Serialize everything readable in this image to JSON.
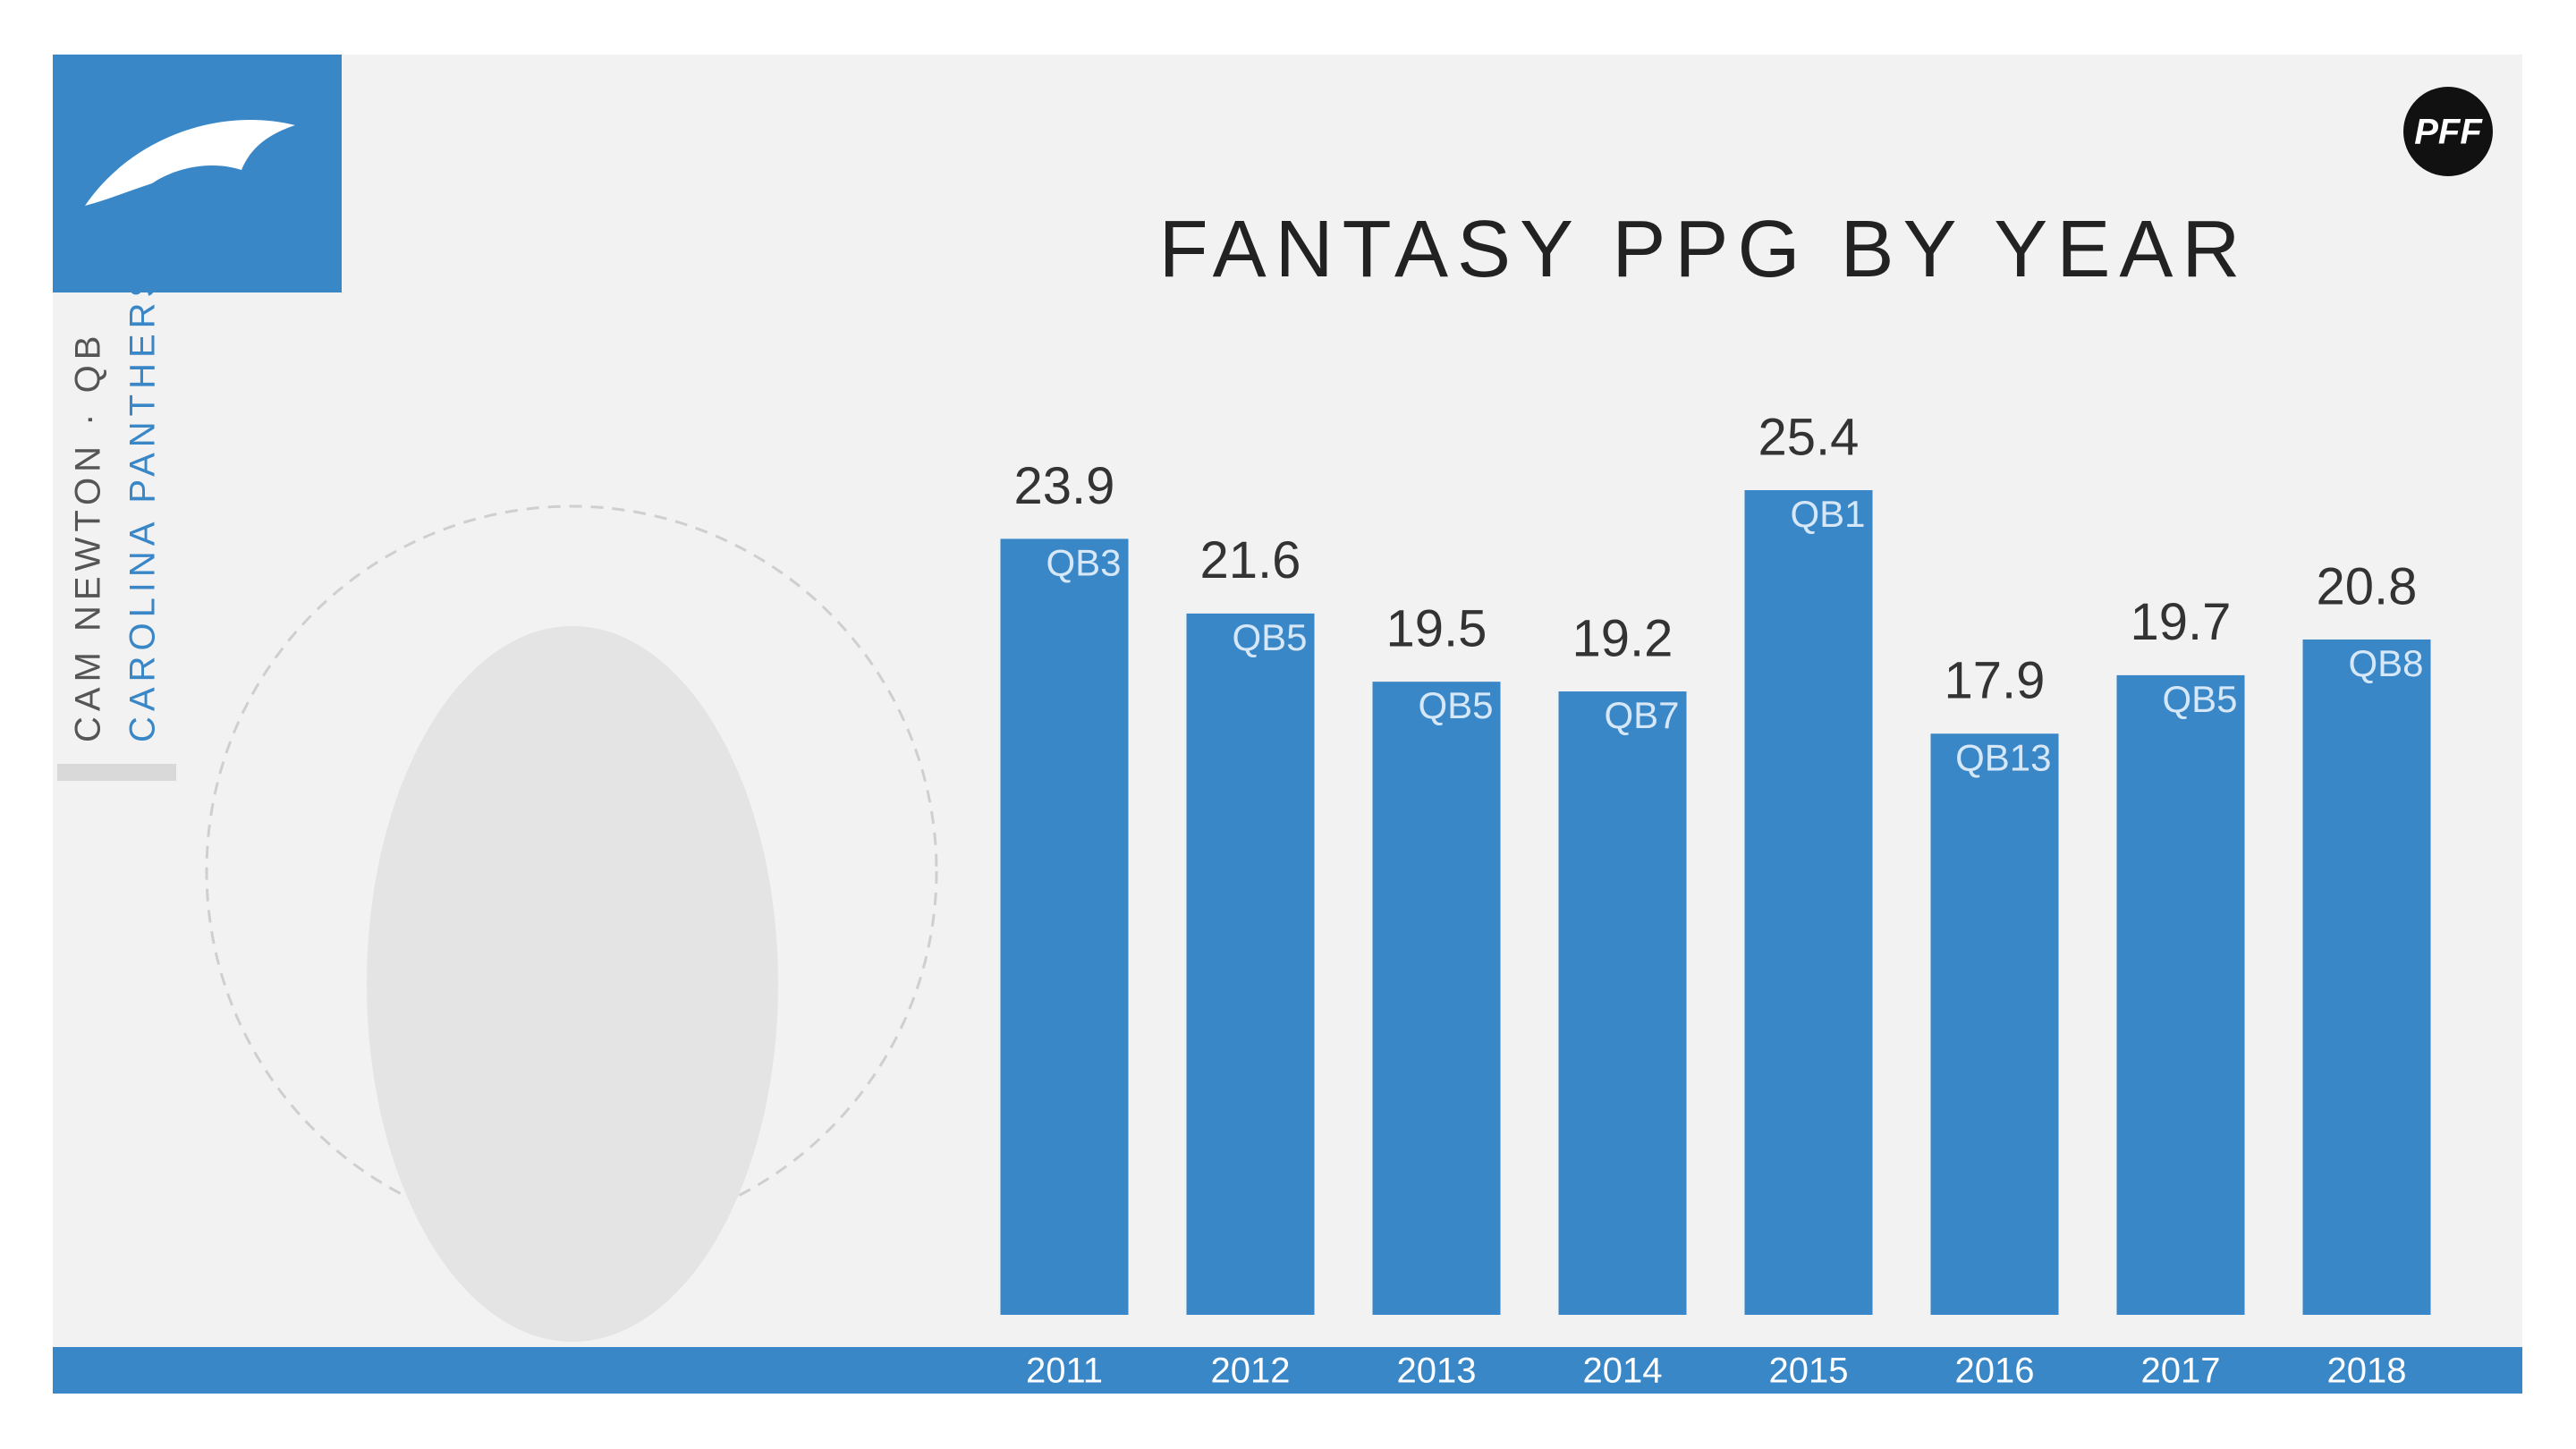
{
  "chart_data": {
    "type": "bar",
    "title": "FANTASY PPG BY YEAR",
    "player": "CAM NEWTON · QB",
    "team": "CAROLINA PANTHERS",
    "brand": "PFF",
    "categories": [
      "2011",
      "2012",
      "2013",
      "2014",
      "2015",
      "2016",
      "2017",
      "2018"
    ],
    "values": [
      23.9,
      21.6,
      19.5,
      19.2,
      25.4,
      17.9,
      19.7,
      20.8
    ],
    "ranks": [
      "QB3",
      "QB5",
      "QB5",
      "QB7",
      "QB1",
      "QB13",
      "QB5",
      "QB8"
    ],
    "color": "#3a87c8"
  }
}
